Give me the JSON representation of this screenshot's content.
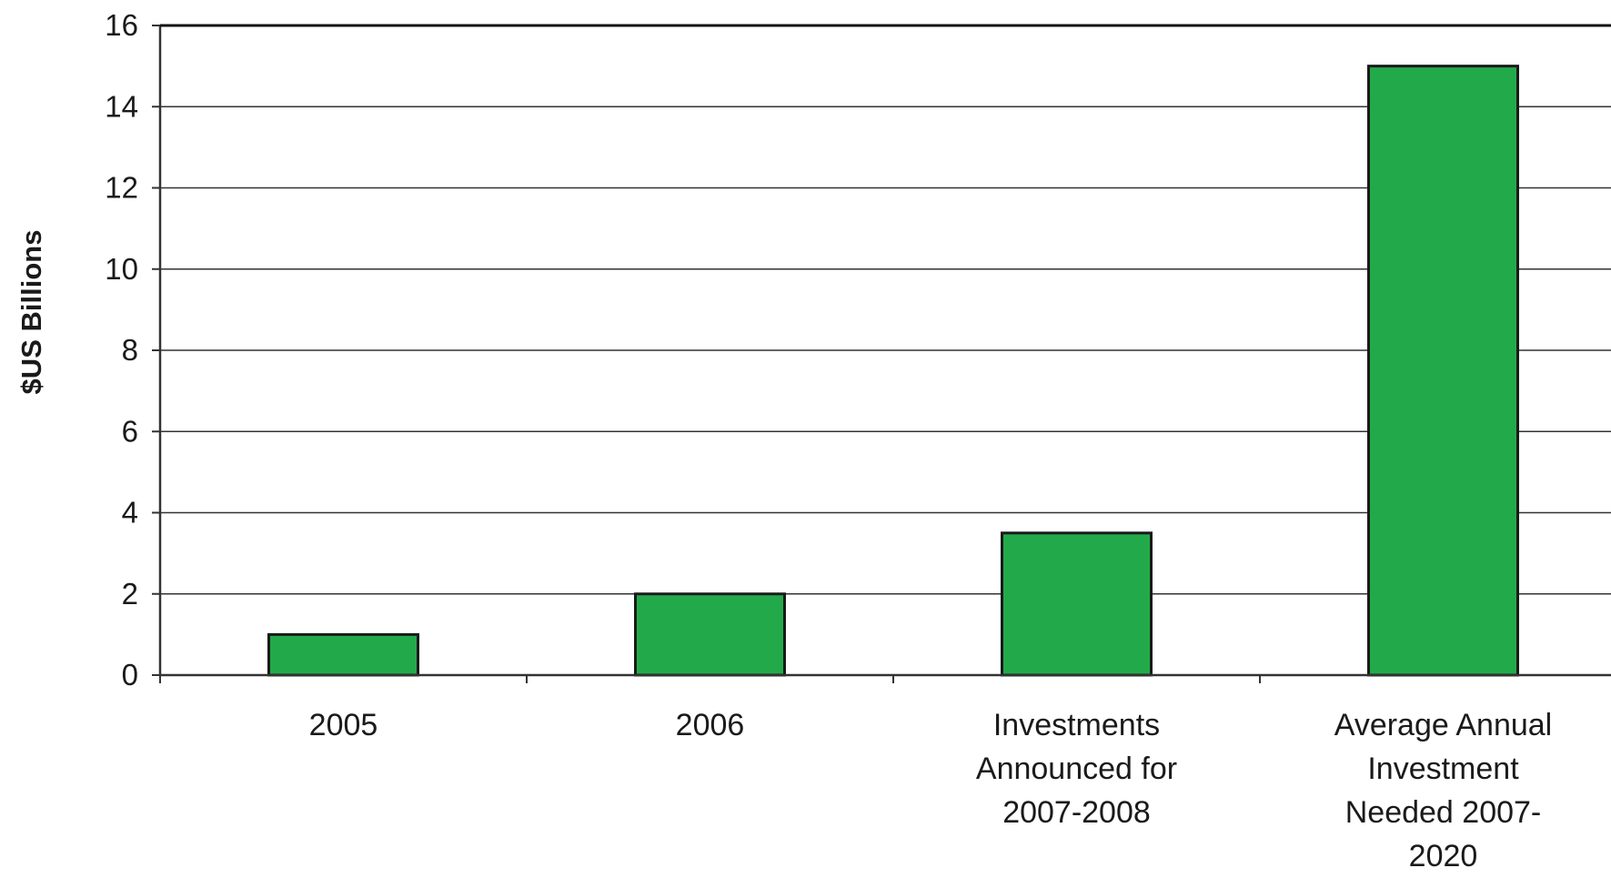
{
  "chart_data": {
    "type": "bar",
    "categories": [
      "2005",
      "2006",
      "Investments Announced for 2007-2008",
      "Average Annual Investment Needed 2007-2020"
    ],
    "category_label_lines": [
      [
        "2005"
      ],
      [
        "2006"
      ],
      [
        "Investments",
        "Announced for",
        "2007-2008"
      ],
      [
        "Average Annual",
        "Investment",
        "Needed 2007-",
        "2020"
      ]
    ],
    "values": [
      1,
      2,
      3.5,
      15
    ],
    "ylabel": "$US Billions",
    "ylim": [
      0,
      16
    ],
    "yticks": [
      "0",
      "2",
      "4",
      "6",
      "8",
      "10",
      "12",
      "14",
      "16"
    ],
    "grid": true,
    "bar_color": "#22aa4a",
    "bar_edge_color": "#1a1a1a"
  }
}
